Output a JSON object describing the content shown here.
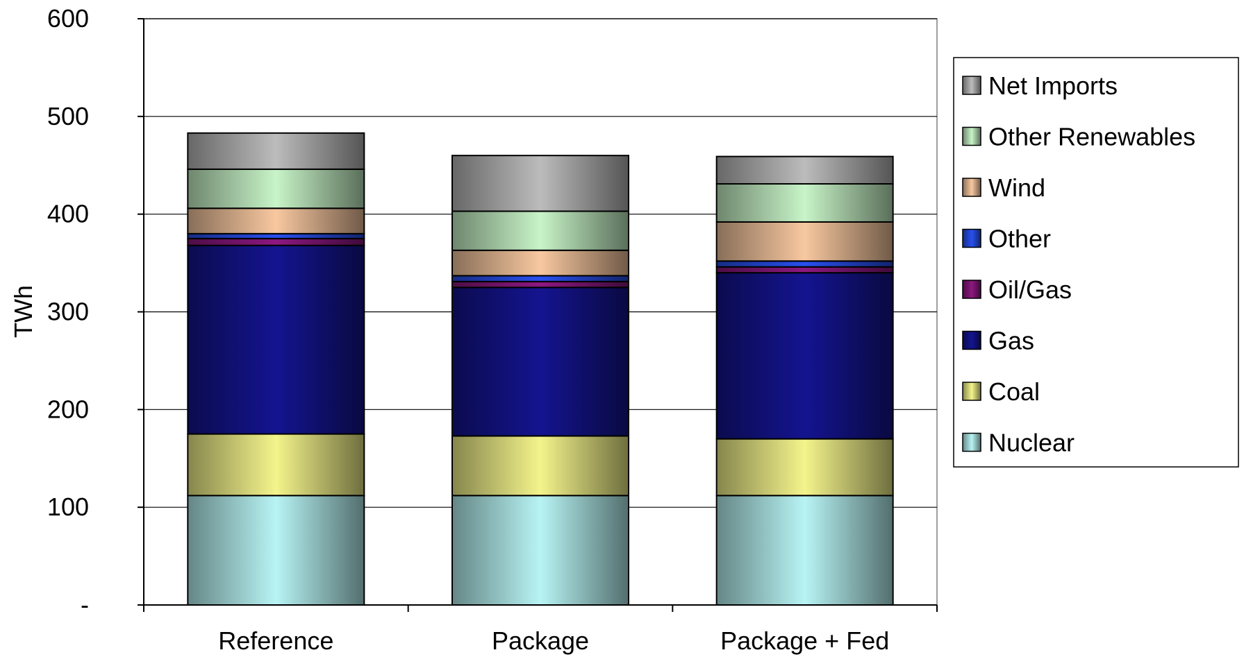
{
  "chart_data": {
    "type": "bar",
    "stacked": true,
    "title": "",
    "xlabel": "",
    "ylabel": "TWh",
    "ylim": [
      0,
      600
    ],
    "yticks": [
      0,
      100,
      200,
      300,
      400,
      500,
      600
    ],
    "ytick_labels": [
      "-",
      "100",
      "200",
      "300",
      "400",
      "500",
      "600"
    ],
    "grid": true,
    "legend_position": "right",
    "categories": [
      "Reference",
      "Package",
      "Package + Fed"
    ],
    "series": [
      {
        "name": "Nuclear",
        "color": "#b8f4f4",
        "values": [
          112,
          112,
          112
        ]
      },
      {
        "name": "Coal",
        "color": "#f4f48c",
        "values": [
          63,
          61,
          58
        ]
      },
      {
        "name": "Gas",
        "color": "#141490",
        "values": [
          193,
          152,
          170
        ]
      },
      {
        "name": "Oil/Gas",
        "color": "#8c1880",
        "values": [
          7,
          6,
          6
        ]
      },
      {
        "name": "Other",
        "color": "#2850f0",
        "values": [
          5,
          6,
          6
        ]
      },
      {
        "name": "Wind",
        "color": "#f8c8a0",
        "values": [
          26,
          26,
          40
        ]
      },
      {
        "name": "Other Renewables",
        "color": "#c8f4c8",
        "values": [
          40,
          40,
          39
        ]
      },
      {
        "name": "Net Imports",
        "color": "#bcbcbc",
        "values": [
          37,
          57,
          28
        ]
      }
    ]
  }
}
